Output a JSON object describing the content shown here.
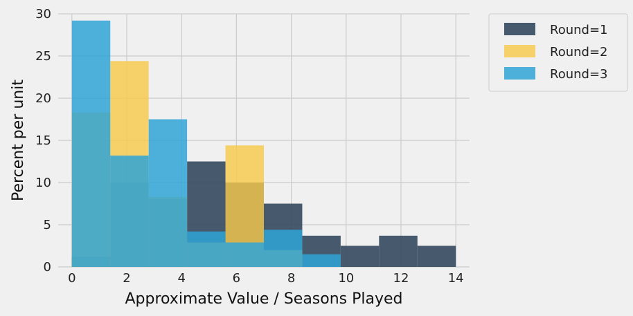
{
  "chart_data": {
    "type": "bar",
    "subtype": "overlaid-histogram",
    "xlabel": "Approximate Value / Seasons Played",
    "ylabel": "Percent per unit",
    "xlim": [
      -0.5,
      14.5
    ],
    "ylim": [
      0,
      30
    ],
    "x_ticks": [
      "0",
      "2",
      "4",
      "6",
      "8",
      "10",
      "12",
      "14"
    ],
    "y_ticks": [
      "0",
      "5",
      "10",
      "15",
      "20",
      "25",
      "30"
    ],
    "grid": true,
    "legend_position": "outside-right",
    "bin_edges": [
      0,
      1.4,
      2.8,
      4.2,
      5.6,
      7.0,
      8.4,
      9.8,
      11.2,
      12.6,
      14.0
    ],
    "series": [
      {
        "name": "Round=1",
        "color": "#34495e",
        "opacity": 0.9,
        "values": [
          1.2,
          10.0,
          8.0,
          12.5,
          10.0,
          7.5,
          3.7,
          2.5,
          3.7,
          2.5
        ]
      },
      {
        "name": "Round=2",
        "color": "#f7c948",
        "opacity": 0.8,
        "values": [
          18.3,
          24.4,
          8.3,
          2.9,
          14.4,
          2.0,
          0,
          0,
          0,
          0
        ]
      },
      {
        "name": "Round=3",
        "color": "#2fa4d6",
        "opacity": 0.85,
        "values": [
          29.2,
          13.2,
          17.5,
          4.2,
          2.9,
          4.4,
          1.5,
          0,
          0,
          0
        ]
      }
    ]
  }
}
